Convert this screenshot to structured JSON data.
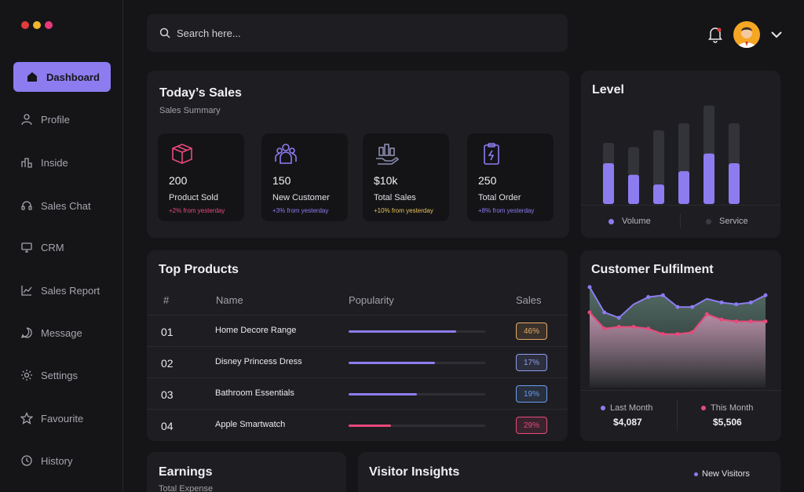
{
  "window": {
    "dots": [
      "#e23b3b",
      "#f1b52a",
      "#e8397a"
    ]
  },
  "sidebar": {
    "items": [
      {
        "label": "Dashboard",
        "icon": "home-icon",
        "active": true
      },
      {
        "label": "Profile",
        "icon": "user-icon"
      },
      {
        "label": "Inside",
        "icon": "bar-chart-icon"
      },
      {
        "label": "Sales Chat",
        "icon": "headset-icon"
      },
      {
        "label": "CRM",
        "icon": "monitor-icon"
      },
      {
        "label": "Sales Report",
        "icon": "line-chart-icon"
      },
      {
        "label": "Message",
        "icon": "chat-bubble-icon"
      },
      {
        "label": "Settings",
        "icon": "gear-icon"
      },
      {
        "label": "Favourite",
        "icon": "star-icon"
      },
      {
        "label": "History",
        "icon": "history-icon"
      }
    ]
  },
  "search": {
    "placeholder": "Search here..."
  },
  "todays_sales": {
    "title": "Today’s Sales",
    "subtitle": "Sales Summary",
    "stats": [
      {
        "value": "200",
        "label": "Product Sold",
        "change": "+2% from yesterday",
        "color": "#e8497a",
        "icon": "box-icon"
      },
      {
        "value": "150",
        "label": "New Customer",
        "change": "+3% from yesterday",
        "color": "#8c7cf0",
        "icon": "users-icon"
      },
      {
        "value": "$10k",
        "label": "Total Sales",
        "change": "+10% from yesterday",
        "color": "#e6c15a",
        "icon": "money-hand-icon"
      },
      {
        "value": "250",
        "label": "Total Order",
        "change": "+8% from yesterday",
        "color": "#8c7cf0",
        "icon": "clipboard-icon"
      }
    ]
  },
  "level": {
    "title": "Level",
    "legend": [
      "Volume",
      "Service"
    ]
  },
  "top_products": {
    "title": "Top Products",
    "columns": [
      "#",
      "Name",
      "Popularity",
      "Sales"
    ],
    "rows": [
      {
        "num": "01",
        "name": "Home Decore Range",
        "popularity": 0.79,
        "sales": "46%",
        "color": "#8c7cf0",
        "badge_color": "#e6a96a"
      },
      {
        "num": "02",
        "name": "Disney Princess Dress",
        "popularity": 0.63,
        "sales": "17%",
        "color": "#8c7cf0",
        "badge_color": "#8c9cf0"
      },
      {
        "num": "03",
        "name": "Bathroom Essentials",
        "popularity": 0.5,
        "sales": "19%",
        "color": "#8c7cf0",
        "badge_color": "#6c9cf0"
      },
      {
        "num": "04",
        "name": "Apple Smartwatch",
        "popularity": 0.31,
        "sales": "29%",
        "color": "#e8497a",
        "badge_color": "#e8497a"
      }
    ]
  },
  "fulfilment": {
    "title": "Customer Fulfilment",
    "last_month_label": "Last Month",
    "last_month_value": "$4,087",
    "this_month_label": "This Month",
    "this_month_value": "$5,506"
  },
  "earnings": {
    "title": "Earnings",
    "subtitle": "Total Expense"
  },
  "visitor": {
    "title": "Visitor Insights",
    "legend": "New Visitors"
  },
  "chart_data": [
    {
      "type": "bar",
      "title": "Level",
      "categories": [
        "1",
        "2",
        "3",
        "4",
        "5",
        "6"
      ],
      "series": [
        {
          "name": "Volume",
          "values": [
            46,
            33,
            22,
            37,
            57,
            46
          ]
        },
        {
          "name": "Service",
          "values": [
            69,
            64,
            83,
            91,
            111,
            91
          ]
        }
      ],
      "ylim": [
        0,
        115
      ]
    },
    {
      "type": "area",
      "title": "Customer Fulfilment",
      "x": [
        1,
        2,
        3,
        4,
        5,
        6,
        7,
        8,
        9,
        10,
        11,
        12,
        13
      ],
      "series": [
        {
          "name": "Last Month",
          "values": [
            94,
            66,
            60,
            75,
            83,
            85,
            72,
            72,
            81,
            77,
            75,
            77,
            85
          ]
        },
        {
          "name": "This Month",
          "values": [
            66,
            48,
            50,
            50,
            48,
            42,
            42,
            44,
            64,
            58,
            56,
            56,
            56
          ]
        }
      ],
      "ylim": [
        0,
        100
      ]
    }
  ]
}
